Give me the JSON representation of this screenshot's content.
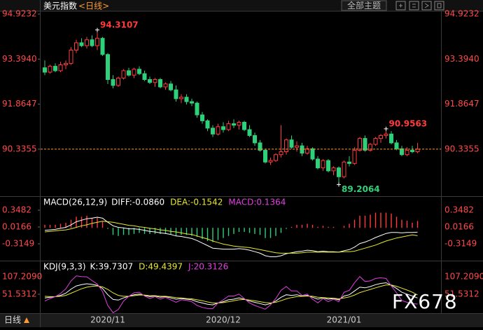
{
  "header": {
    "title": "美元指数",
    "period": "<日线>",
    "theme_button": "全部主题"
  },
  "footer": {
    "period_tab": "日线"
  },
  "watermark": "FX678",
  "chart_data": [
    {
      "type": "candlestick",
      "categories": [
        null,
        null,
        null,
        null,
        null,
        null,
        null,
        null,
        null,
        null,
        null,
        null,
        "2020/11",
        null,
        null,
        null,
        null,
        null,
        null,
        null,
        null,
        null,
        null,
        null,
        null,
        null,
        null,
        null,
        null,
        null,
        null,
        null,
        null,
        null,
        "2020/12",
        null,
        null,
        null,
        null,
        null,
        null,
        null,
        null,
        null,
        null,
        null,
        null,
        null,
        null,
        null,
        null,
        null,
        null,
        null,
        null,
        null,
        null,
        "2021/01",
        null,
        null,
        null,
        null,
        null,
        null,
        null,
        null,
        null,
        null,
        null,
        null,
        null,
        null
      ],
      "open": [
        93.1,
        92.95,
        93.15,
        93.0,
        93.2,
        93.25,
        93.7,
        93.95,
        93.85,
        94.05,
        93.85,
        94.1,
        93.55,
        92.7,
        92.5,
        92.75,
        93.0,
        92.85,
        93.05,
        92.9,
        92.7,
        92.6,
        92.7,
        92.45,
        92.55,
        92.35,
        92.05,
        92.1,
        91.95,
        91.9,
        91.5,
        91.3,
        91.05,
        90.85,
        91.1,
        91.0,
        91.2,
        91.15,
        91.25,
        91.0,
        90.8,
        90.55,
        90.3,
        89.9,
        89.95,
        90.15,
        90.25,
        90.65,
        90.4,
        90.45,
        90.2,
        90.35,
        90.0,
        89.7,
        89.95,
        89.6,
        89.7,
        89.4,
        89.9,
        89.85,
        90.3,
        90.7,
        90.3,
        90.5,
        90.7,
        90.8,
        90.85,
        90.55,
        90.35,
        90.15,
        90.3,
        90.25
      ],
      "high": [
        93.35,
        93.2,
        93.25,
        93.3,
        93.35,
        93.8,
        94.05,
        94.1,
        94.15,
        94.2,
        94.3107,
        94.15,
        93.6,
        92.85,
        92.8,
        93.05,
        93.1,
        93.1,
        93.15,
        93.0,
        92.8,
        92.75,
        92.75,
        92.6,
        92.65,
        92.5,
        92.2,
        92.2,
        92.05,
        91.95,
        91.6,
        91.35,
        91.15,
        91.2,
        91.25,
        91.3,
        91.35,
        91.3,
        91.3,
        91.15,
        90.9,
        90.65,
        90.35,
        90.05,
        90.2,
        91.15,
        90.7,
        90.8,
        90.6,
        90.55,
        90.45,
        90.4,
        90.1,
        90.0,
        90.0,
        89.75,
        89.75,
        89.95,
        90.1,
        90.4,
        90.75,
        90.8,
        90.55,
        90.75,
        90.85,
        90.9563,
        90.95,
        90.65,
        90.45,
        90.4,
        90.45,
        90.55
      ],
      "low": [
        92.85,
        92.9,
        92.95,
        92.95,
        93.05,
        93.2,
        93.6,
        93.8,
        93.75,
        93.8,
        93.7,
        93.5,
        92.55,
        92.4,
        92.45,
        92.7,
        92.8,
        92.75,
        92.85,
        92.65,
        92.55,
        92.45,
        92.4,
        92.35,
        92.3,
        91.95,
        91.9,
        91.85,
        91.8,
        91.4,
        91.2,
        90.95,
        90.75,
        90.8,
        90.9,
        90.95,
        91.05,
        91.0,
        90.95,
        90.75,
        90.45,
        90.25,
        89.85,
        89.8,
        89.9,
        90.05,
        90.15,
        90.35,
        90.25,
        90.1,
        90.15,
        89.95,
        89.65,
        89.6,
        89.55,
        89.45,
        89.2064,
        89.35,
        89.75,
        89.8,
        90.25,
        90.25,
        90.25,
        90.45,
        90.55,
        90.7,
        90.5,
        90.3,
        90.1,
        90.1,
        90.2,
        90.2
      ],
      "close": [
        92.95,
        93.15,
        93.0,
        93.2,
        93.25,
        93.7,
        93.95,
        93.85,
        94.05,
        93.85,
        94.1,
        93.55,
        92.7,
        92.5,
        92.75,
        93.0,
        92.85,
        93.05,
        92.9,
        92.7,
        92.6,
        92.7,
        92.45,
        92.55,
        92.35,
        92.05,
        92.1,
        91.95,
        91.9,
        91.5,
        91.3,
        91.05,
        90.85,
        91.1,
        91.0,
        91.2,
        91.15,
        91.25,
        91.0,
        90.8,
        90.55,
        90.3,
        89.9,
        89.95,
        90.15,
        90.25,
        90.65,
        90.4,
        90.45,
        90.2,
        90.35,
        90.0,
        89.7,
        89.95,
        89.6,
        89.7,
        89.4,
        89.9,
        89.85,
        90.3,
        90.7,
        90.3,
        90.5,
        90.7,
        90.8,
        90.85,
        90.55,
        90.35,
        90.15,
        90.3,
        90.25,
        90.3355
      ],
      "up_color": "#ff3b3b",
      "down_color": "#2fd07a",
      "price_line_color": "#ff9a2e",
      "tick_color": "#ff4a4a",
      "ylim": [
        88.74,
        95.21
      ],
      "yticks": [
        94.9232,
        {
          "value": 93.394,
          "label": "93.3940"
        },
        91.8647,
        90.3355
      ]
    },
    {
      "type": "line",
      "title": "MACD(26,12,9)",
      "tick_color": "#ff4a4a",
      "ylim": [
        -0.6465,
        0.583
      ],
      "yticks": [
        0.3482,
        0.0166,
        -0.3149
      ],
      "series": [
        {
          "name": "DIFF:-0.0860",
          "color": "#ffffff",
          "values": [
            -0.05,
            -0.04,
            -0.03,
            -0.01,
            0.01,
            0.06,
            0.12,
            0.15,
            0.18,
            0.19,
            0.21,
            0.19,
            0.11,
            0.04,
            0.01,
            0.0,
            -0.02,
            -0.02,
            -0.03,
            -0.05,
            -0.07,
            -0.08,
            -0.1,
            -0.11,
            -0.13,
            -0.16,
            -0.17,
            -0.19,
            -0.21,
            -0.25,
            -0.3,
            -0.35,
            -0.4,
            -0.41,
            -0.42,
            -0.42,
            -0.42,
            -0.41,
            -0.42,
            -0.44,
            -0.47,
            -0.5,
            -0.55,
            -0.57,
            -0.57,
            -0.55,
            -0.51,
            -0.49,
            -0.47,
            -0.46,
            -0.44,
            -0.45,
            -0.47,
            -0.46,
            -0.47,
            -0.47,
            -0.48,
            -0.45,
            -0.43,
            -0.38,
            -0.31,
            -0.28,
            -0.24,
            -0.19,
            -0.15,
            -0.11,
            -0.09,
            -0.09,
            -0.1,
            -0.09,
            -0.09,
            -0.086
          ]
        },
        {
          "name": "DEA:-0.1542",
          "color": "#e8e82a",
          "values": [
            -0.08,
            -0.07,
            -0.06,
            -0.05,
            -0.04,
            -0.02,
            0.01,
            0.04,
            0.06,
            0.09,
            0.11,
            0.13,
            0.12,
            0.11,
            0.09,
            0.07,
            0.05,
            0.04,
            0.02,
            0.01,
            -0.01,
            -0.02,
            -0.04,
            -0.05,
            -0.07,
            -0.08,
            -0.1,
            -0.12,
            -0.13,
            -0.16,
            -0.19,
            -0.22,
            -0.26,
            -0.29,
            -0.32,
            -0.34,
            -0.36,
            -0.37,
            -0.38,
            -0.39,
            -0.41,
            -0.43,
            -0.45,
            -0.47,
            -0.49,
            -0.5,
            -0.5,
            -0.5,
            -0.5,
            -0.49,
            -0.48,
            -0.48,
            -0.48,
            -0.48,
            -0.48,
            -0.48,
            -0.48,
            -0.47,
            -0.47,
            -0.46,
            -0.43,
            -0.4,
            -0.37,
            -0.34,
            -0.3,
            -0.26,
            -0.23,
            -0.2,
            -0.18,
            -0.16,
            -0.14,
            -0.1542
          ]
        },
        {
          "name": "MACD:0.1364",
          "color": "#e040e0",
          "style": "histogram",
          "up_color": "#ff3b3b",
          "down_color": "#2fd07a",
          "values": [
            0.06,
            0.06,
            0.06,
            0.08,
            0.1,
            0.16,
            0.22,
            0.22,
            0.24,
            0.2,
            0.2,
            0.12,
            -0.02,
            -0.14,
            -0.16,
            -0.14,
            -0.14,
            -0.12,
            -0.1,
            -0.12,
            -0.12,
            -0.12,
            -0.12,
            -0.12,
            -0.12,
            -0.16,
            -0.14,
            -0.14,
            -0.16,
            -0.18,
            -0.22,
            -0.26,
            -0.28,
            -0.24,
            -0.2,
            -0.16,
            -0.12,
            -0.08,
            -0.08,
            -0.1,
            -0.12,
            -0.14,
            -0.2,
            -0.2,
            -0.16,
            -0.1,
            -0.02,
            0.02,
            0.06,
            0.06,
            0.08,
            0.06,
            0.02,
            0.04,
            0.02,
            0.02,
            0.0,
            0.04,
            0.08,
            0.16,
            0.24,
            0.24,
            0.26,
            0.3,
            0.3,
            0.3,
            0.28,
            0.22,
            0.16,
            0.14,
            0.1,
            0.1364
          ]
        }
      ]
    },
    {
      "type": "line",
      "title": "KDJ(9,3,3)",
      "tick_color": "#ff4a4a",
      "ylim": [
        -8.6,
        151.8
      ],
      "yticks": [
        {
          "value": 107.209,
          "label": "107.2090"
        },
        51.5312
      ],
      "series": [
        {
          "name": "K:39.7307",
          "color": "#ffffff",
          "values": [
            40,
            42,
            44,
            48,
            55,
            68,
            78,
            82,
            85,
            83,
            80,
            70,
            50,
            35,
            33,
            40,
            45,
            50,
            52,
            48,
            44,
            46,
            42,
            44,
            40,
            36,
            38,
            36,
            34,
            28,
            24,
            20,
            18,
            24,
            28,
            34,
            36,
            40,
            36,
            30,
            26,
            22,
            18,
            22,
            30,
            42,
            50,
            48,
            50,
            46,
            48,
            42,
            36,
            40,
            36,
            38,
            34,
            46,
            50,
            62,
            74,
            72,
            76,
            82,
            86,
            88,
            80,
            70,
            58,
            52,
            46,
            39.7307
          ]
        },
        {
          "name": "D:49.4397",
          "color": "#e8e82a",
          "values": [
            45,
            44,
            44,
            45,
            48,
            55,
            62,
            69,
            74,
            77,
            78,
            75,
            67,
            56,
            48,
            45,
            45,
            47,
            49,
            49,
            47,
            47,
            45,
            45,
            43,
            41,
            40,
            38,
            37,
            34,
            31,
            27,
            24,
            24,
            25,
            28,
            31,
            34,
            35,
            33,
            31,
            28,
            25,
            24,
            26,
            31,
            37,
            41,
            44,
            45,
            46,
            45,
            42,
            41,
            40,
            39,
            37,
            40,
            43,
            49,
            57,
            62,
            67,
            72,
            77,
            81,
            81,
            77,
            71,
            65,
            58,
            49.4397
          ]
        },
        {
          "name": "J:20.3126",
          "color": "#e040e0",
          "values": [
            30,
            38,
            44,
            54,
            69,
            94,
            110,
            108,
            107,
            95,
            84,
            60,
            16,
            -7,
            3,
            30,
            45,
            56,
            58,
            46,
            38,
            44,
            36,
            42,
            34,
            26,
            34,
            32,
            28,
            16,
            10,
            6,
            6,
            24,
            34,
            46,
            46,
            52,
            38,
            24,
            16,
            10,
            4,
            18,
            38,
            64,
            76,
            62,
            62,
            48,
            52,
            36,
            24,
            38,
            28,
            36,
            28,
            58,
            64,
            88,
            108,
            92,
            94,
            102,
            104,
            102,
            78,
            56,
            32,
            26,
            22,
            20.3126
          ]
        }
      ]
    }
  ]
}
